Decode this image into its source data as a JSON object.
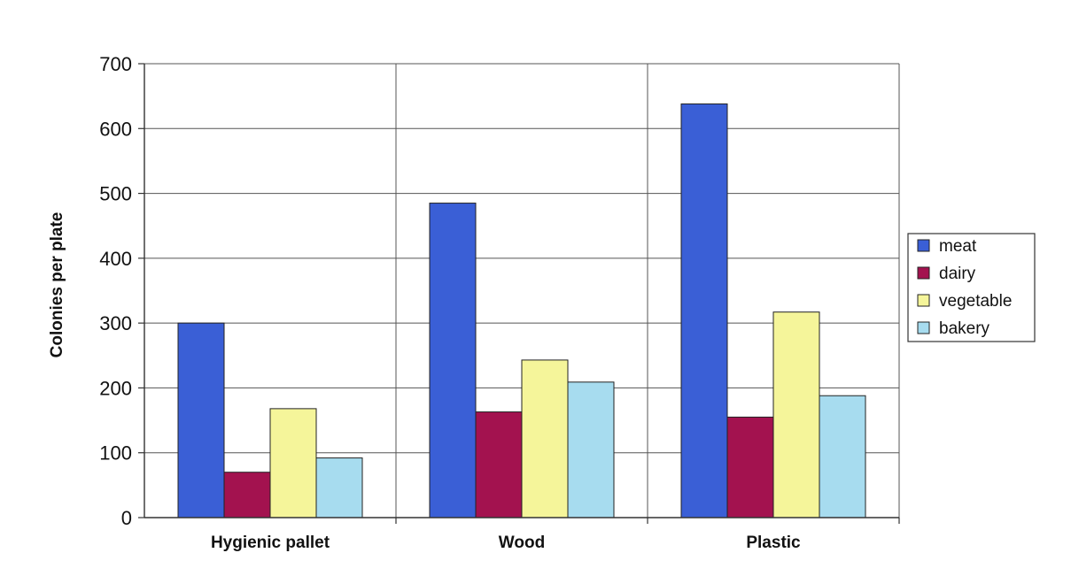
{
  "chart_data": {
    "type": "bar",
    "title": "",
    "xlabel": "",
    "ylabel": "Colonies per plate",
    "ylim": [
      0,
      700
    ],
    "yticks": [
      0,
      100,
      200,
      300,
      400,
      500,
      600,
      700
    ],
    "categories": [
      "Hygienic pallet",
      "Wood",
      "Plastic"
    ],
    "series": [
      {
        "name": "meat",
        "color": "#3a5fd6",
        "values": [
          300,
          485,
          638
        ]
      },
      {
        "name": "dairy",
        "color": "#a3124f",
        "values": [
          70,
          163,
          155
        ]
      },
      {
        "name": "vegetable",
        "color": "#f5f59a",
        "values": [
          168,
          243,
          317
        ]
      },
      {
        "name": "bakery",
        "color": "#a7dcef",
        "values": [
          92,
          209,
          188
        ]
      }
    ],
    "grid": true,
    "legend_position": "right"
  }
}
